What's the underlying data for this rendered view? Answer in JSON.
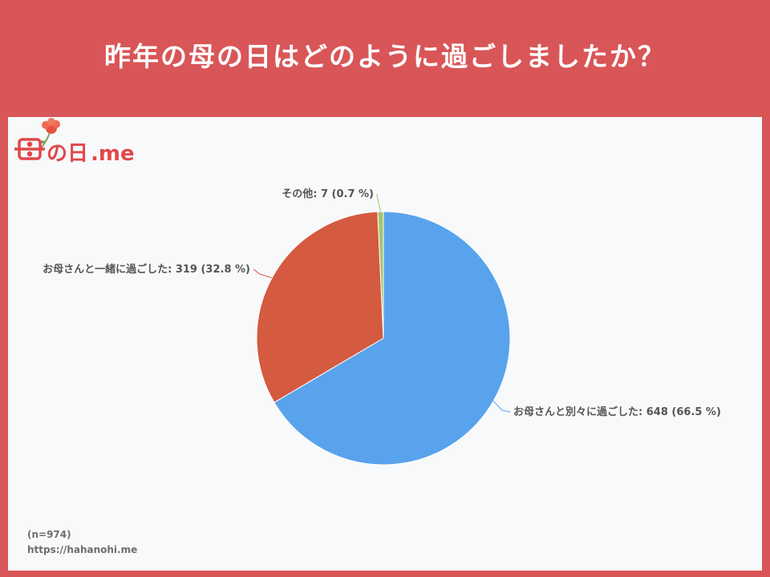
{
  "title": "昨年の母の日はどのように過ごしましたか？",
  "chart_data": {
    "type": "pie",
    "categories": [
      "お母さんと別々に過ごした",
      "お母さんと一緒に過ごした",
      "その他"
    ],
    "values": [
      648,
      319,
      7
    ],
    "percent": [
      66.5,
      32.8,
      0.7
    ],
    "labels": [
      "お母さんと別々に過ごした: 648 (66.5 %)",
      "お母さんと一緒に過ごした: 319 (32.8 %)",
      "その他: 7 (0.7 %)"
    ],
    "colors": [
      "#59a3ec",
      "#d45a40",
      "#a7c56a"
    ]
  },
  "footer": {
    "n": "(n=974)",
    "url": "https://hahanohi.me"
  },
  "logo": {
    "text_a": "の日",
    "text_b": ".me",
    "color": "#e0484a"
  }
}
